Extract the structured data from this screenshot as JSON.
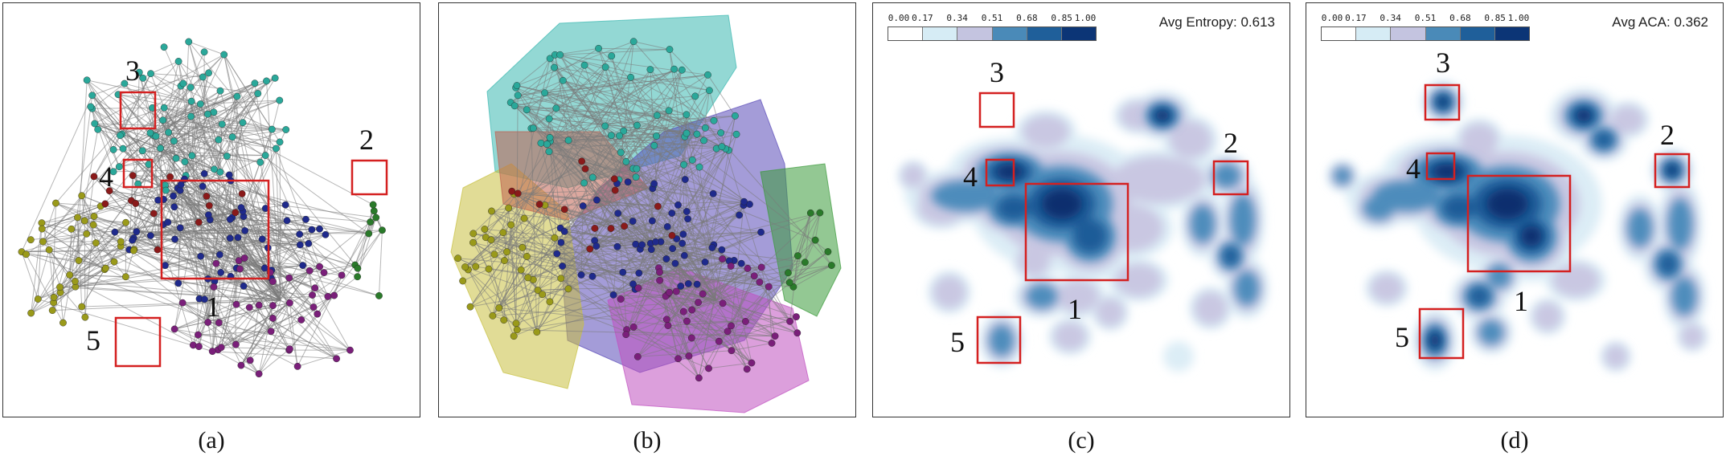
{
  "captions": [
    "(a)",
    "(b)",
    "(c)",
    "(d)"
  ],
  "region_labels": [
    "1",
    "2",
    "3",
    "4",
    "5"
  ],
  "colorbar": {
    "ticks": [
      "0.00",
      "0.17",
      "0.34",
      "0.51",
      "0.68",
      "0.85",
      "1.00"
    ],
    "colors": [
      "#ffffff",
      "#d6ecf5",
      "#c4c4e0",
      "#4a8ab8",
      "#1f5f9a",
      "#0c3576"
    ]
  },
  "panel_c": {
    "metric_label": "Avg Entropy: 0.613"
  },
  "panel_d": {
    "metric_label": "Avg ACA: 0.362"
  },
  "colors": {
    "cyan": "#2aa89a",
    "navy": "#1f2a8c",
    "purple": "#7a1f7a",
    "olive": "#9a9a1a",
    "red": "#8a1a1a",
    "green": "#2a7a2a",
    "edge": "#7a7a7a",
    "box": "#d42020"
  }
}
